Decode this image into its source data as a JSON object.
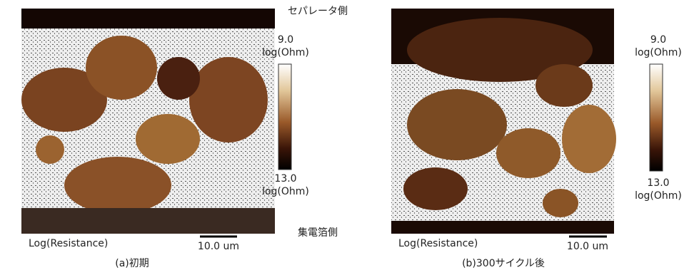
{
  "header": {
    "top_label": "セパレータ側",
    "bottom_label": "集電箔側"
  },
  "panels": [
    {
      "caption": "(a)初期",
      "colorbar_top": "9.0",
      "colorbar_top_unit": "log(Ohm)",
      "colorbar_bottom": "13.0",
      "colorbar_bottom_unit": "log(Ohm)",
      "image_label": "Log(Resistance)",
      "scale_label": "10.0 um"
    },
    {
      "caption": "(b)300サイクル後",
      "colorbar_top": "9.0",
      "colorbar_top_unit": "log(Ohm)",
      "colorbar_bottom": "13.0",
      "colorbar_bottom_unit": "log(Ohm)",
      "image_label": "Log(Resistance)",
      "scale_label": "10.0 um"
    }
  ]
}
